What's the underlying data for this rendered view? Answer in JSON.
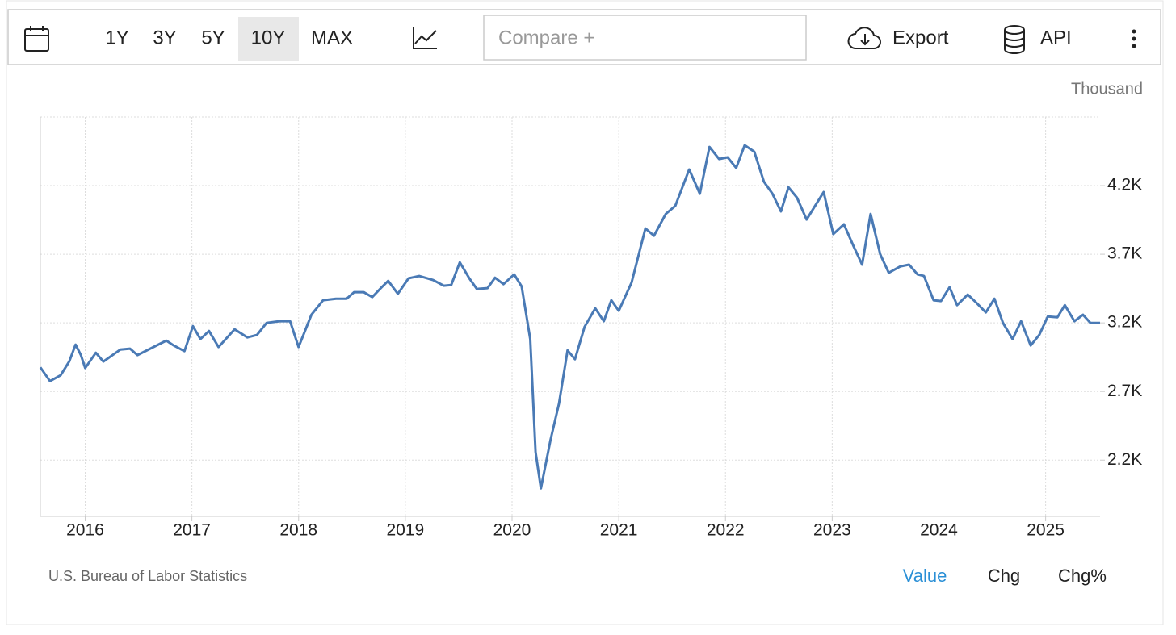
{
  "toolbar": {
    "ranges": [
      "1Y",
      "3Y",
      "5Y",
      "10Y",
      "MAX"
    ],
    "compare": "Compare +",
    "export": "Export",
    "api": "API"
  },
  "chart_data": {
    "type": "line",
    "y_unit": "Thousand",
    "source": "U.S. Bureau of Labor Statistics",
    "color": "#4a7ab5",
    "grid": true,
    "x": [
      2015.58,
      2015.67,
      2015.77,
      2015.85,
      2015.91,
      2015.96,
      2016.0,
      2016.1,
      2016.17,
      2016.33,
      2016.42,
      2016.49,
      2016.61,
      2016.76,
      2016.83,
      2016.93,
      2017.01,
      2017.08,
      2017.16,
      2017.25,
      2017.4,
      2017.52,
      2017.61,
      2017.7,
      2017.82,
      2017.92,
      2018.0,
      2018.12,
      2018.23,
      2018.35,
      2018.45,
      2018.52,
      2018.61,
      2018.69,
      2018.77,
      2018.84,
      2018.93,
      2019.03,
      2019.13,
      2019.26,
      2019.36,
      2019.43,
      2019.51,
      2019.6,
      2019.67,
      2019.77,
      2019.84,
      2019.92,
      2020.02,
      2020.09,
      2020.17,
      2020.22,
      2020.27,
      2020.36,
      2020.44,
      2020.52,
      2020.59,
      2020.68,
      2020.78,
      2020.86,
      2020.93,
      2021.0,
      2021.12,
      2021.25,
      2021.33,
      2021.44,
      2021.53,
      2021.66,
      2021.76,
      2021.85,
      2021.94,
      2022.02,
      2022.1,
      2022.18,
      2022.27,
      2022.36,
      2022.44,
      2022.52,
      2022.59,
      2022.67,
      2022.76,
      2022.84,
      2022.92,
      2023.01,
      2023.11,
      2023.2,
      2023.28,
      2023.36,
      2023.45,
      2023.53,
      2023.64,
      2023.72,
      2023.8,
      2023.86,
      2023.95,
      2024.02,
      2024.1,
      2024.17,
      2024.27,
      2024.35,
      2024.44,
      2024.52,
      2024.6,
      2024.69,
      2024.77,
      2024.86,
      2024.94,
      2025.02,
      2025.11,
      2025.18,
      2025.27,
      2025.35,
      2025.42,
      2025.51
    ],
    "values": [
      2876,
      2776,
      2818,
      2918,
      3041,
      2965,
      2871,
      2982,
      2918,
      3006,
      3012,
      2965,
      3012,
      3071,
      3035,
      2994,
      3176,
      3082,
      3141,
      3024,
      3153,
      3094,
      3112,
      3200,
      3212,
      3212,
      3024,
      3259,
      3365,
      3376,
      3376,
      3424,
      3424,
      3388,
      3453,
      3506,
      3412,
      3524,
      3541,
      3512,
      3471,
      3476,
      3641,
      3524,
      3447,
      3453,
      3529,
      3482,
      3553,
      3465,
      3082,
      2259,
      1994,
      2347,
      2612,
      3000,
      2935,
      3171,
      3306,
      3212,
      3365,
      3288,
      3494,
      3888,
      3835,
      3994,
      4053,
      4318,
      4141,
      4482,
      4394,
      4406,
      4329,
      4494,
      4447,
      4229,
      4141,
      4012,
      4188,
      4112,
      3953,
      4053,
      4153,
      3847,
      3918,
      3759,
      3624,
      3994,
      3700,
      3565,
      3612,
      3624,
      3553,
      3541,
      3365,
      3359,
      3459,
      3329,
      3406,
      3347,
      3276,
      3376,
      3200,
      3082,
      3212,
      3035,
      3112,
      3247,
      3241,
      3329,
      3212,
      3259,
      3200,
      3200
    ],
    "xlim": [
      2015.58,
      2025.51
    ],
    "ylim": [
      1790,
      4700
    ],
    "xticks": [
      2016,
      2017,
      2018,
      2019,
      2020,
      2021,
      2022,
      2023,
      2024,
      2025
    ],
    "yticks": [
      {
        "value": 2200,
        "label": "2.2K"
      },
      {
        "value": 2700,
        "label": "2.7K"
      },
      {
        "value": 3200,
        "label": "3.2K"
      },
      {
        "value": 3700,
        "label": "3.7K"
      },
      {
        "value": 4200,
        "label": "4.2K"
      }
    ]
  },
  "tabs": [
    "Value",
    "Chg",
    "Chg%"
  ]
}
